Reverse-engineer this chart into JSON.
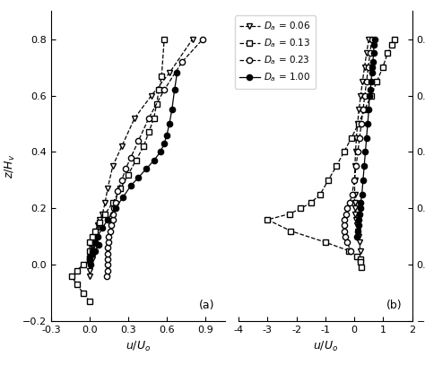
{
  "a_tri_u": [
    0.0,
    0.0,
    0.0,
    0.02,
    0.02,
    0.02,
    0.02,
    0.02,
    0.04,
    0.05,
    0.06,
    0.08,
    0.1,
    0.12,
    0.14,
    0.18,
    0.25,
    0.35,
    0.48,
    0.62,
    0.8
  ],
  "a_tri_z": [
    -0.04,
    -0.02,
    0.0,
    0.02,
    0.04,
    0.06,
    0.07,
    0.08,
    0.1,
    0.12,
    0.14,
    0.16,
    0.18,
    0.22,
    0.27,
    0.35,
    0.42,
    0.52,
    0.6,
    0.68,
    0.8
  ],
  "a_sq_u": [
    0.0,
    -0.05,
    -0.1,
    -0.14,
    -0.1,
    -0.05,
    0.0,
    0.0,
    0.0,
    0.02,
    0.04,
    0.08,
    0.12,
    0.18,
    0.24,
    0.3,
    0.36,
    0.42,
    0.46,
    0.5,
    0.52,
    0.54,
    0.56,
    0.58
  ],
  "a_sq_z": [
    -0.13,
    -0.1,
    -0.07,
    -0.04,
    -0.02,
    0.0,
    0.02,
    0.05,
    0.08,
    0.1,
    0.12,
    0.15,
    0.18,
    0.22,
    0.27,
    0.32,
    0.37,
    0.42,
    0.47,
    0.52,
    0.57,
    0.62,
    0.67,
    0.8
  ],
  "a_ci_u": [
    0.13,
    0.14,
    0.14,
    0.14,
    0.14,
    0.14,
    0.15,
    0.15,
    0.16,
    0.17,
    0.18,
    0.18,
    0.19,
    0.2,
    0.22,
    0.25,
    0.28,
    0.32,
    0.38,
    0.46,
    0.58,
    0.72,
    0.88
  ],
  "a_ci_z": [
    -0.04,
    -0.02,
    0.0,
    0.02,
    0.04,
    0.06,
    0.08,
    0.1,
    0.12,
    0.14,
    0.16,
    0.18,
    0.2,
    0.22,
    0.26,
    0.3,
    0.34,
    0.38,
    0.44,
    0.52,
    0.62,
    0.72,
    0.8
  ],
  "a_fc_u": [
    0.07,
    0.04,
    0.02,
    0.0,
    0.0,
    0.01,
    0.02,
    0.04,
    0.06,
    0.1,
    0.14,
    0.2,
    0.26,
    0.32,
    0.38,
    0.44,
    0.5,
    0.55,
    0.58,
    0.6,
    0.62,
    0.64,
    0.66,
    0.68
  ],
  "a_fc_z": [
    0.07,
    0.05,
    0.04,
    0.03,
    0.02,
    0.0,
    0.05,
    0.08,
    0.1,
    0.13,
    0.16,
    0.2,
    0.24,
    0.28,
    0.31,
    0.34,
    0.37,
    0.4,
    0.43,
    0.46,
    0.5,
    0.55,
    0.62,
    0.68
  ],
  "b_tri_u": [
    0.5,
    0.42,
    0.35,
    0.28,
    0.22,
    0.16,
    0.11,
    0.07,
    0.04,
    0.02,
    0.01,
    0.01,
    0.01,
    0.02,
    0.03,
    0.05,
    0.08,
    0.12,
    0.16,
    0.18,
    0.2
  ],
  "b_tri_z": [
    0.8,
    0.75,
    0.7,
    0.65,
    0.6,
    0.55,
    0.5,
    0.45,
    0.4,
    0.35,
    0.3,
    0.25,
    0.22,
    0.2,
    0.18,
    0.16,
    0.14,
    0.12,
    0.1,
    0.08,
    0.05
  ],
  "b_sq_u": [
    1.4,
    1.3,
    1.15,
    0.98,
    0.78,
    0.58,
    0.36,
    0.14,
    -0.1,
    -0.36,
    -0.62,
    -0.9,
    -1.18,
    -1.5,
    -1.85,
    -2.25,
    -3.0,
    -2.2,
    -1.0,
    -0.2,
    0.1,
    0.2,
    0.22,
    0.24
  ],
  "b_sq_z": [
    0.8,
    0.78,
    0.75,
    0.7,
    0.65,
    0.6,
    0.55,
    0.5,
    0.45,
    0.4,
    0.35,
    0.3,
    0.25,
    0.22,
    0.2,
    0.18,
    0.16,
    0.12,
    0.08,
    0.05,
    0.03,
    0.02,
    0.01,
    -0.01
  ],
  "b_ci_u": [
    0.6,
    0.54,
    0.48,
    0.42,
    0.36,
    0.3,
    0.24,
    0.18,
    0.12,
    0.06,
    0.0,
    -0.08,
    -0.16,
    -0.24,
    -0.3,
    -0.34,
    -0.36,
    -0.36,
    -0.32,
    -0.24,
    -0.14
  ],
  "b_ci_z": [
    0.8,
    0.75,
    0.7,
    0.65,
    0.6,
    0.55,
    0.5,
    0.45,
    0.4,
    0.35,
    0.3,
    0.25,
    0.22,
    0.2,
    0.18,
    0.16,
    0.14,
    0.12,
    0.1,
    0.08,
    0.05
  ],
  "b_fc_u": [
    0.7,
    0.68,
    0.66,
    0.64,
    0.62,
    0.6,
    0.58,
    0.55,
    0.52,
    0.5,
    0.46,
    0.42,
    0.38,
    0.34,
    0.3,
    0.26,
    0.22,
    0.2,
    0.18,
    0.16,
    0.14,
    0.12,
    0.1
  ],
  "b_fc_z": [
    0.8,
    0.78,
    0.75,
    0.72,
    0.7,
    0.68,
    0.65,
    0.62,
    0.6,
    0.55,
    0.5,
    0.45,
    0.4,
    0.35,
    0.3,
    0.25,
    0.22,
    0.2,
    0.18,
    0.16,
    0.14,
    0.12,
    0.1
  ],
  "xlim_a": [
    -0.3,
    1.05
  ],
  "xlim_b": [
    -4.0,
    2.0
  ],
  "ylim": [
    -0.2,
    0.9
  ],
  "yticks": [
    -0.2,
    0.0,
    0.2,
    0.4,
    0.6,
    0.8
  ],
  "xticks_a": [
    -0.3,
    0.0,
    0.3,
    0.6,
    0.9
  ],
  "xticks_b": [
    -3,
    -2,
    -1,
    0,
    1,
    2
  ]
}
